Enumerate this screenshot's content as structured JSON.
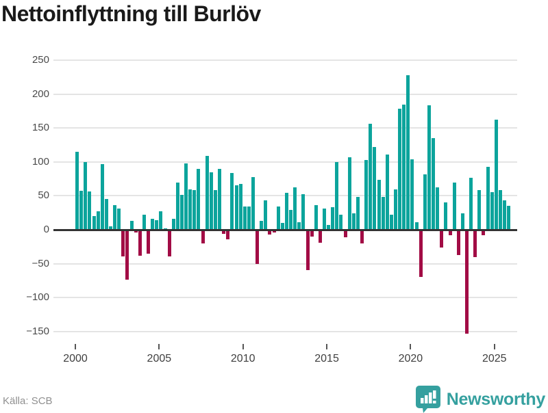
{
  "title": "Nettoinflyttning till Burlöv",
  "footer": {
    "source": "Källa: SCB",
    "brand": "Newsworthy"
  },
  "colors": {
    "positive": "#0ca49c",
    "negative": "#a20c45",
    "grid": "#e4e4e4",
    "zero_line": "#333333",
    "axis_text": "#4a4a4a",
    "title_text": "#1a1a1a",
    "source_text": "#909090",
    "brand_teal": "#35a09f"
  },
  "y_axis": {
    "ticks": [
      250,
      200,
      150,
      100,
      50,
      0,
      -50,
      -100,
      -150
    ]
  },
  "x_axis": {
    "tick_years": [
      2000,
      2005,
      2010,
      2015,
      2020,
      2025
    ]
  },
  "chart_data": {
    "type": "bar",
    "title": "Nettoinflyttning till Burlöv",
    "frequency": "quarterly",
    "x_start": "2000-Q1",
    "x_end": "2025-Q4",
    "ylim": [
      -150,
      250
    ],
    "grid": true,
    "series_name": "Nettoinflyttning",
    "values_by_year": [
      {
        "year": 2000,
        "quarters": [
          115,
          57,
          100,
          56
        ]
      },
      {
        "year": 2001,
        "quarters": [
          20,
          27,
          97,
          45
        ]
      },
      {
        "year": 2002,
        "quarters": [
          5,
          36,
          31,
          -38
        ]
      },
      {
        "year": 2003,
        "quarters": [
          -72,
          13,
          -3,
          -37
        ]
      },
      {
        "year": 2004,
        "quarters": [
          22,
          -34,
          16,
          14
        ]
      },
      {
        "year": 2005,
        "quarters": [
          27,
          2,
          -38,
          16
        ]
      },
      {
        "year": 2006,
        "quarters": [
          70,
          51,
          98,
          59
        ]
      },
      {
        "year": 2007,
        "quarters": [
          58,
          90,
          -19,
          109
        ]
      },
      {
        "year": 2008,
        "quarters": [
          85,
          58,
          90,
          -5
        ]
      },
      {
        "year": 2009,
        "quarters": [
          -13,
          84,
          66,
          68
        ]
      },
      {
        "year": 2010,
        "quarters": [
          34,
          34,
          78,
          -49
        ]
      },
      {
        "year": 2011,
        "quarters": [
          13,
          43,
          -6,
          -3
        ]
      },
      {
        "year": 2012,
        "quarters": [
          34,
          10,
          54,
          29
        ]
      },
      {
        "year": 2013,
        "quarters": [
          62,
          11,
          52,
          -58
        ]
      },
      {
        "year": 2014,
        "quarters": [
          -9,
          36,
          -18,
          31
        ]
      },
      {
        "year": 2015,
        "quarters": [
          7,
          33,
          100,
          22
        ]
      },
      {
        "year": 2016,
        "quarters": [
          -10,
          107,
          24,
          48
        ]
      },
      {
        "year": 2017,
        "quarters": [
          -19,
          103,
          156,
          122
        ]
      },
      {
        "year": 2018,
        "quarters": [
          74,
          48,
          111,
          22
        ]
      },
      {
        "year": 2019,
        "quarters": [
          59,
          178,
          184,
          228
        ]
      },
      {
        "year": 2020,
        "quarters": [
          104,
          11,
          -68,
          82
        ]
      },
      {
        "year": 2021,
        "quarters": [
          183,
          135,
          62,
          -25
        ]
      },
      {
        "year": 2022,
        "quarters": [
          40,
          -7,
          70,
          -36
        ]
      },
      {
        "year": 2023,
        "quarters": [
          24,
          -152,
          77,
          -39
        ]
      },
      {
        "year": 2024,
        "quarters": [
          58,
          -7,
          93,
          55
        ]
      },
      {
        "year": 2025,
        "quarters": [
          162,
          58,
          43,
          35
        ]
      }
    ]
  }
}
